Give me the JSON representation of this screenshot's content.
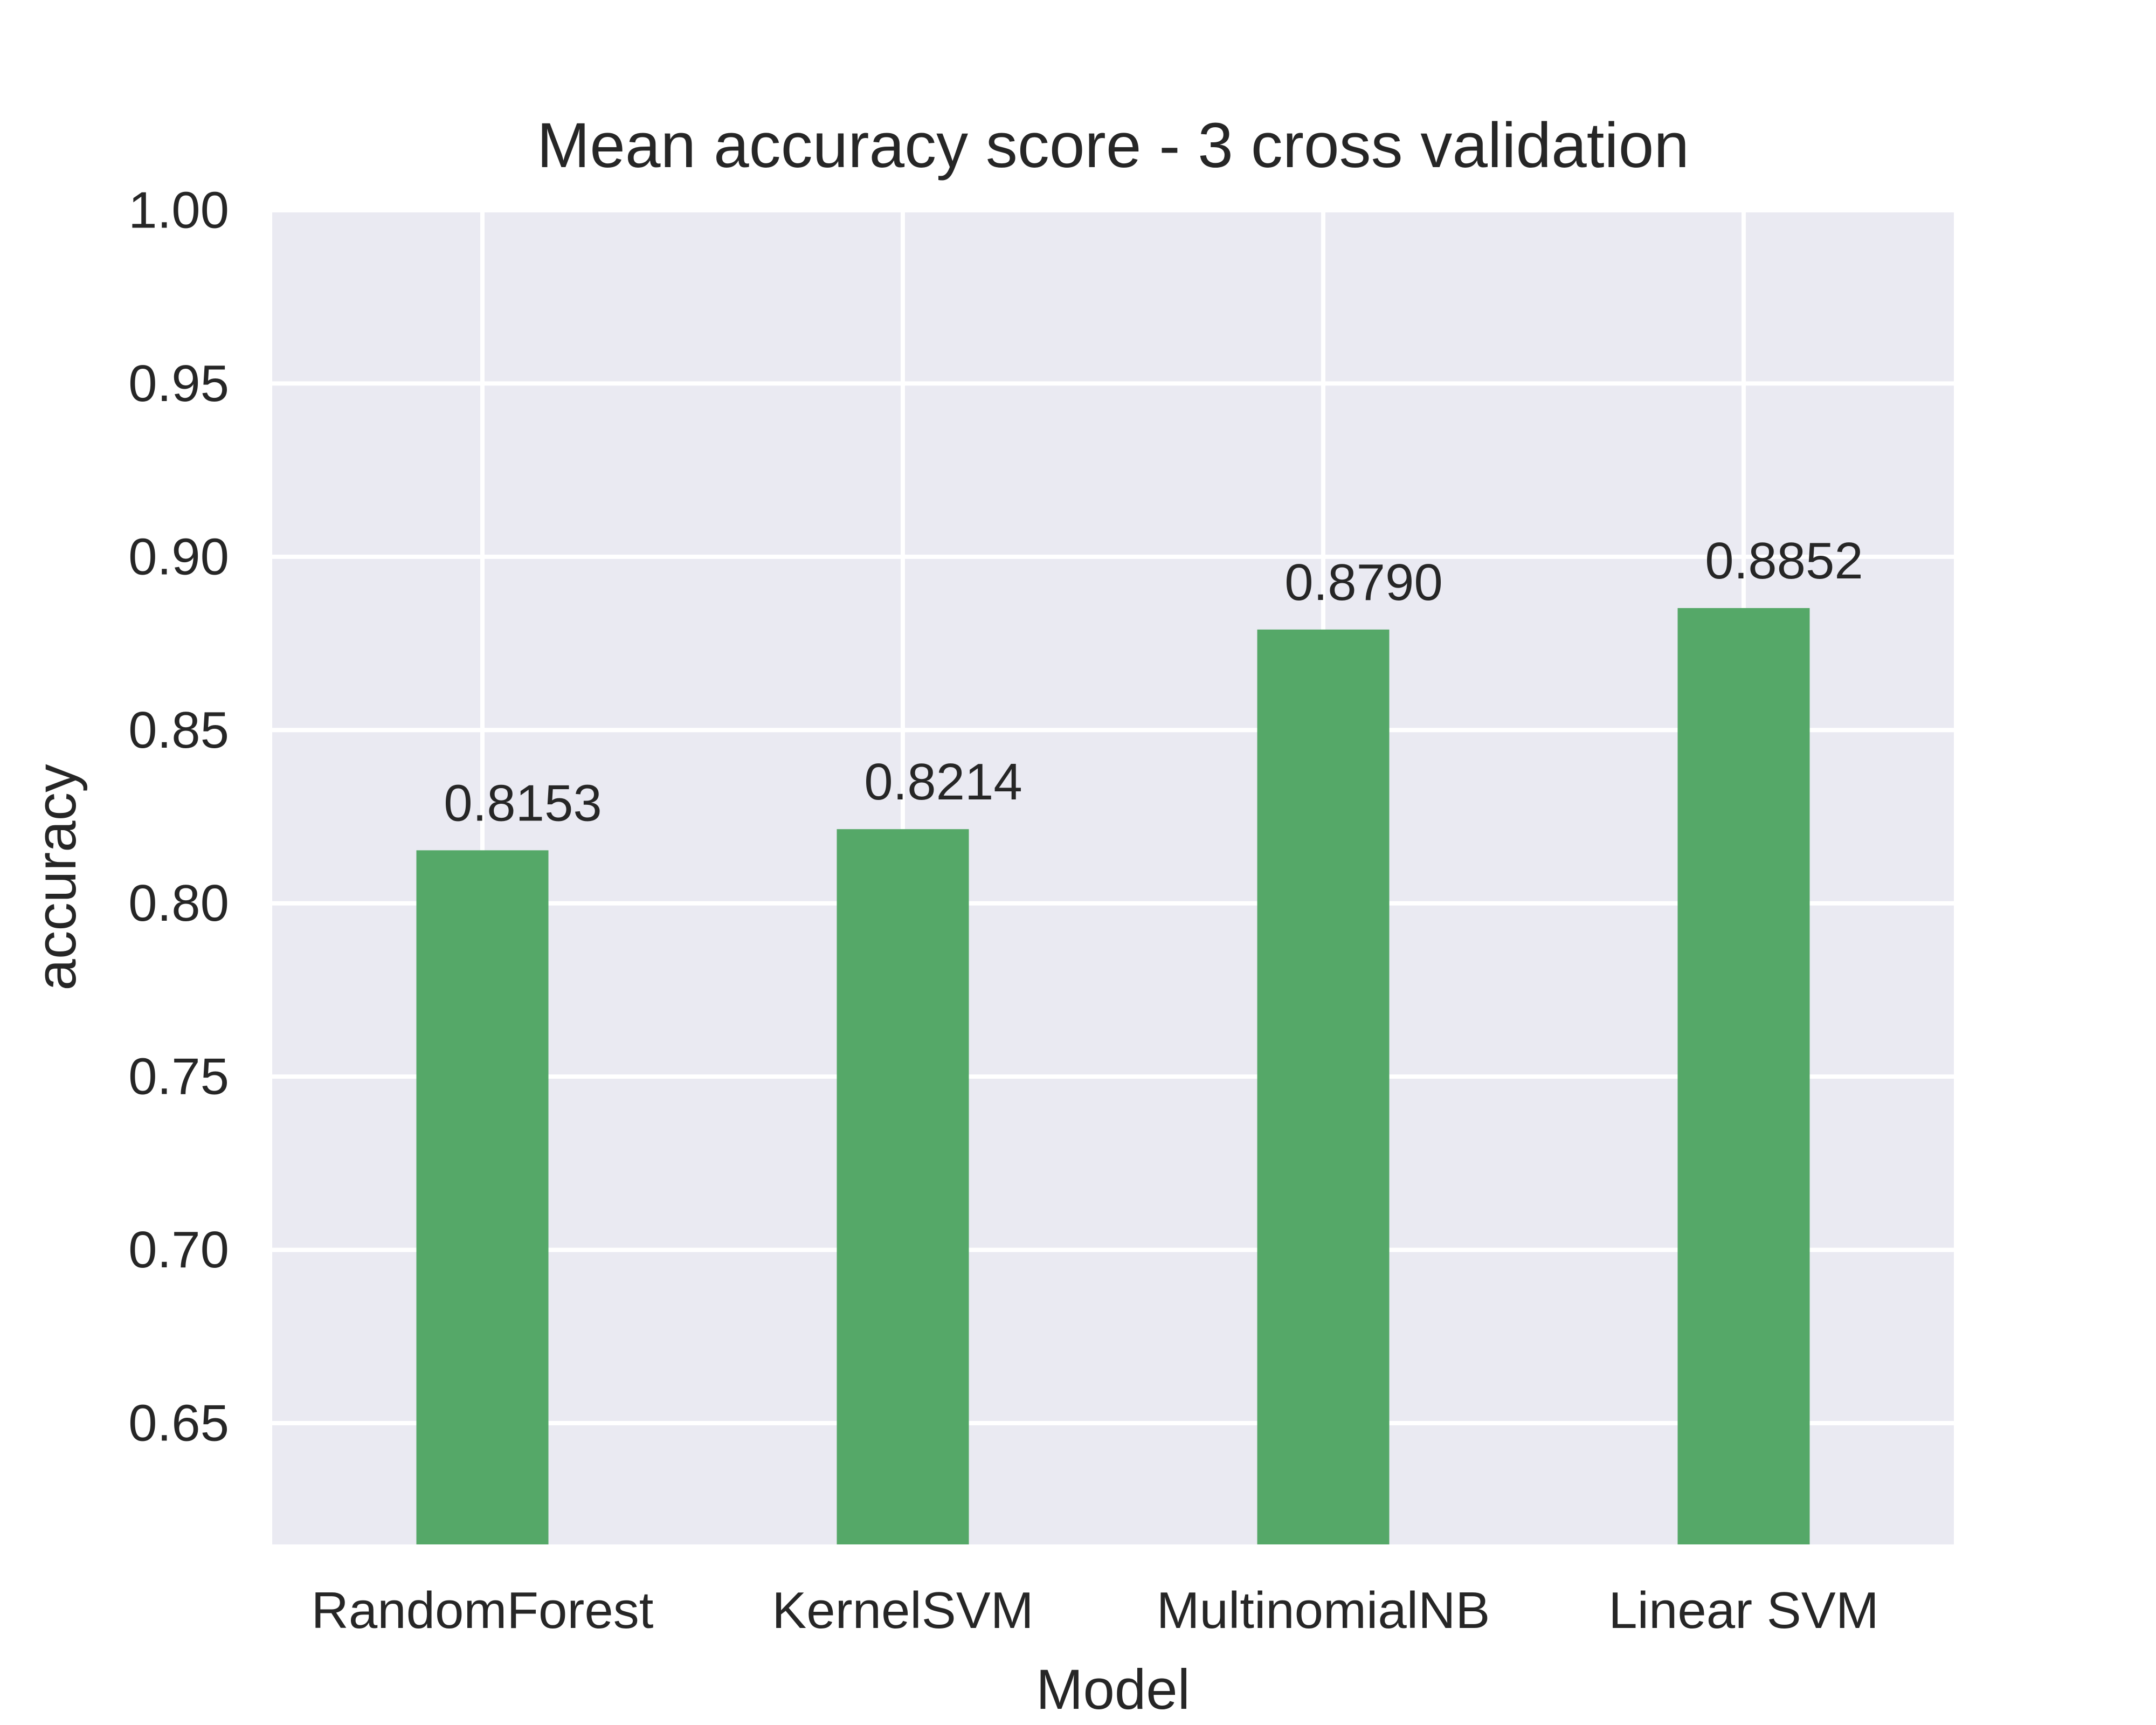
{
  "chart_data": {
    "type": "bar",
    "title": "Mean accuracy score - 3 cross validation",
    "xlabel": "Model",
    "ylabel": "accuracy",
    "categories": [
      "RandomForest",
      "KernelSVM",
      "MultinomialNB",
      "Linear SVM"
    ],
    "values": [
      0.8153,
      0.8214,
      0.879,
      0.8852
    ],
    "data_labels": [
      "0.8153",
      "0.8214",
      "0.8790",
      "0.8852"
    ],
    "ylim": [
      0.615,
      1.0
    ],
    "yticks": [
      0.65,
      0.7,
      0.75,
      0.8,
      0.85,
      0.9,
      0.95,
      1.0
    ],
    "ytick_labels": [
      "0.65",
      "0.70",
      "0.75",
      "0.80",
      "0.85",
      "0.90",
      "0.95",
      "1.00"
    ],
    "grid": true,
    "legend": "none",
    "colors": {
      "bar": "#55a868",
      "plot_background": "#eaeaf2",
      "grid": "#ffffff",
      "text": "#262626"
    }
  }
}
